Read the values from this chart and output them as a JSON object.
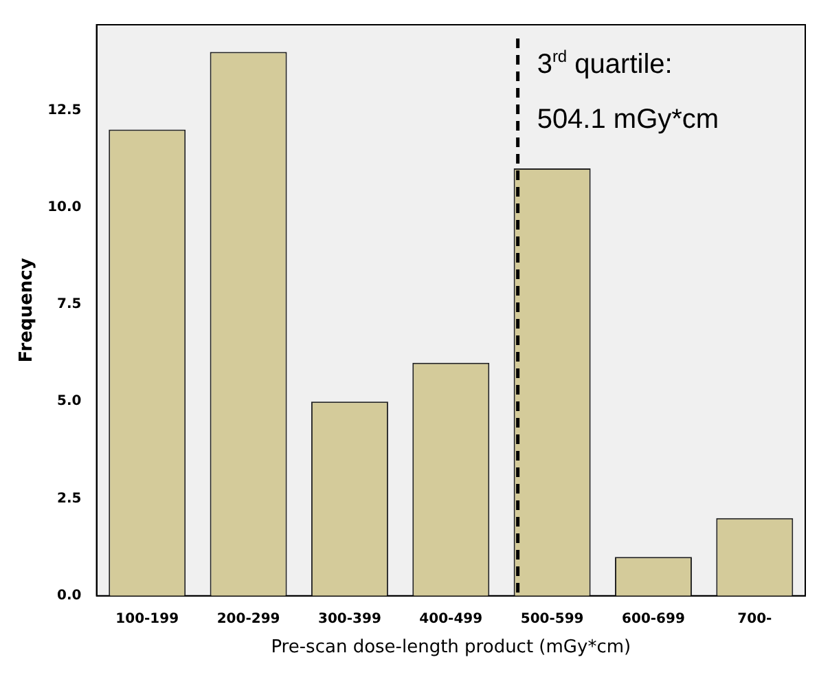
{
  "chart_data": {
    "type": "bar",
    "xlabel": "Pre-scan dose-length product (mGy*cm)",
    "ylabel": "Frequency",
    "categories": [
      "100-199",
      "200-299",
      "300-399",
      "400-499",
      "500-599",
      "600-699",
      "700-"
    ],
    "values": [
      12,
      14,
      5,
      6,
      11,
      1,
      2
    ],
    "color": "#d4cb9a",
    "ylim": [
      0,
      14.7
    ],
    "yticks": [
      {
        "value": 0,
        "label": "0.0"
      },
      {
        "value": 2.5,
        "label": "2.5"
      },
      {
        "value": 5,
        "label": "5.0"
      },
      {
        "value": 7.5,
        "label": "7.5"
      },
      {
        "value": 10,
        "label": "10.0"
      },
      {
        "value": 12.5,
        "label": "12.5"
      }
    ],
    "grid": false,
    "legend": false,
    "ref_lines": [
      {
        "axis": "x",
        "value": "500-599",
        "line_style": "dashed",
        "color": "#000000"
      }
    ],
    "annotations": [
      "3$^{rd}$ quartile:",
      "504.1 mGy*cm"
    ]
  }
}
